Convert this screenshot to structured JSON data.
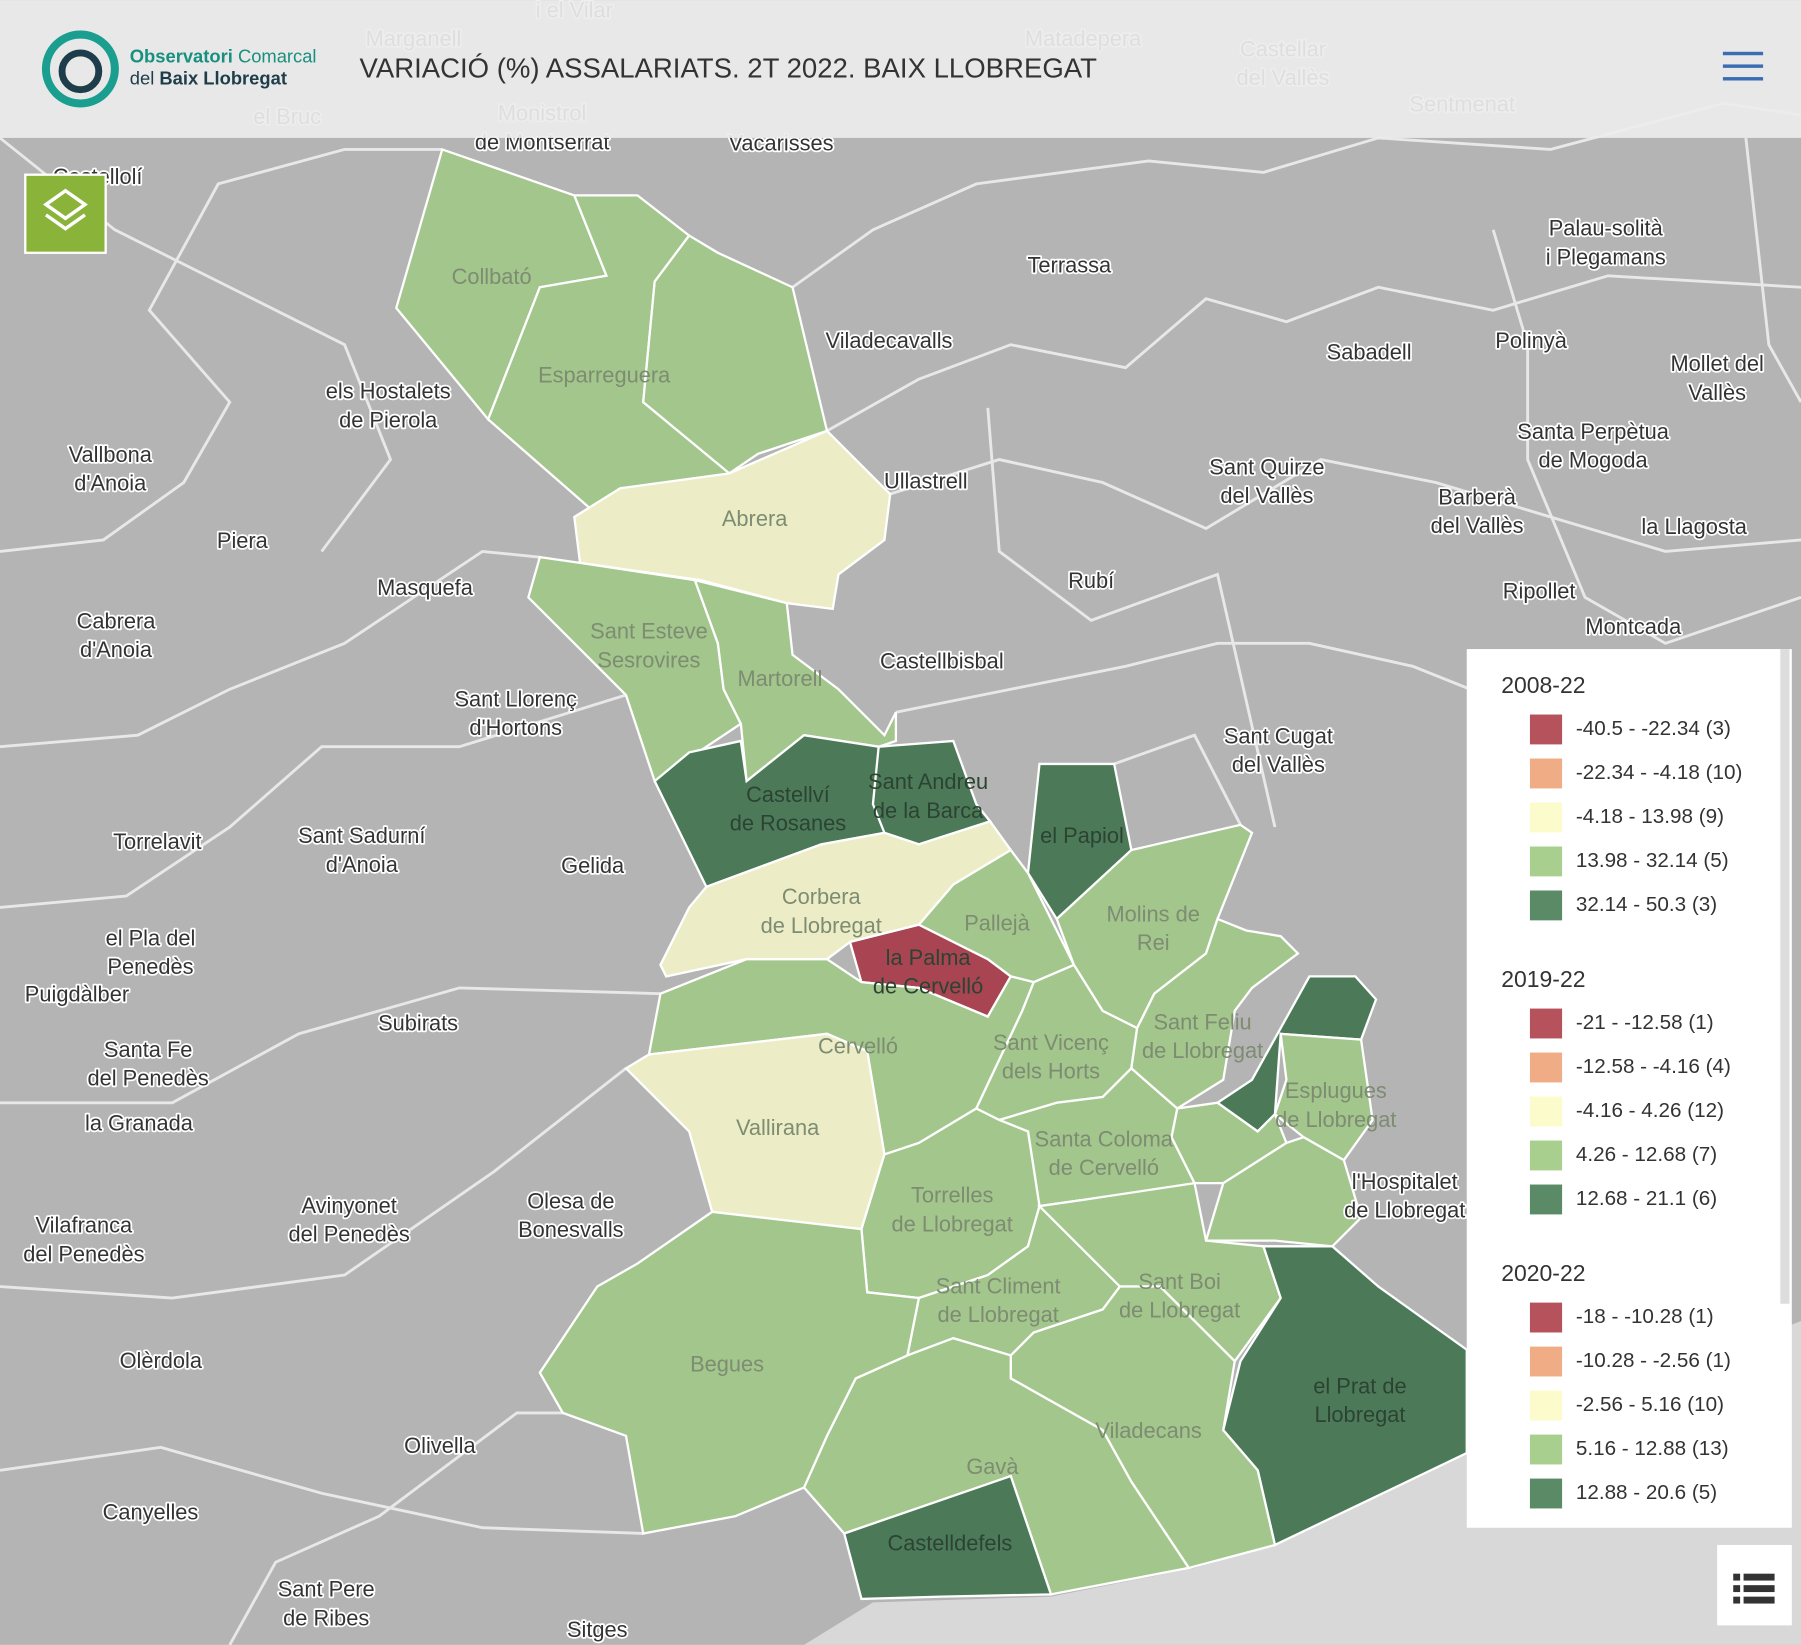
{
  "header": {
    "logo_line1_bold": "Observatori",
    "logo_line1": "Comarcal",
    "logo_line2": "del",
    "logo_line2_bold": "Baix Llobregat",
    "title": "VARIACIÓ (%) ASSALARIATS. 2T 2022. BAIX LLOBREGAT"
  },
  "base_labels": [
    {
      "lines": [
        "Marganell"
      ]
    },
    {
      "lines": [
        "i el Vilar"
      ]
    },
    {
      "lines": [
        "Matadepera"
      ]
    },
    {
      "lines": [
        "Castellar",
        "del Vallès"
      ]
    },
    {
      "lines": [
        "Sentmenat"
      ]
    },
    {
      "lines": [
        "el Bruc"
      ]
    },
    {
      "lines": [
        "Monistrol",
        "de Montserrat"
      ]
    },
    {
      "lines": [
        "Vacarisses"
      ]
    },
    {
      "lines": [
        "Terrassa"
      ]
    },
    {
      "lines": [
        "Palau-solità",
        "i Plegamans"
      ]
    },
    {
      "lines": [
        "els Hostalets",
        "de Pierola"
      ]
    },
    {
      "lines": [
        "Viladecavalls"
      ]
    },
    {
      "lines": [
        "Sabadell"
      ]
    },
    {
      "lines": [
        "Polinyà"
      ]
    },
    {
      "lines": [
        "Mollet del",
        "Vallès"
      ]
    },
    {
      "lines": [
        "Vallbona",
        "d'Anoia"
      ]
    },
    {
      "lines": [
        "Santa Perpètua",
        "de Mogoda"
      ]
    },
    {
      "lines": [
        "Sant Quirze",
        "del Vallès"
      ]
    },
    {
      "lines": [
        "Ullastrell"
      ]
    },
    {
      "lines": [
        "Barberà",
        "del Vallès"
      ]
    },
    {
      "lines": [
        "la Llagosta"
      ]
    },
    {
      "lines": [
        "Piera"
      ]
    },
    {
      "lines": [
        "Rubí"
      ]
    },
    {
      "lines": [
        "Masquefa"
      ]
    },
    {
      "lines": [
        "Ripollet"
      ]
    },
    {
      "lines": [
        "Cabrera",
        "d'Anoia"
      ]
    },
    {
      "lines": [
        "Montcada"
      ]
    },
    {
      "lines": [
        "Castellbisbal"
      ]
    },
    {
      "lines": [
        "Sant Llorenç",
        "d'Hortons"
      ]
    },
    {
      "lines": [
        "Sant Cugat",
        "del Vallès"
      ]
    },
    {
      "lines": [
        "Torrelavit"
      ]
    },
    {
      "lines": [
        "Sant Sadurní",
        "d'Anoia"
      ]
    },
    {
      "lines": [
        "Gelida"
      ]
    },
    {
      "lines": [
        "el Pla del",
        "Penedès"
      ]
    },
    {
      "lines": [
        "Puigdàlber"
      ]
    },
    {
      "lines": [
        "Subirats"
      ]
    },
    {
      "lines": [
        "Santa Fe",
        "del Penedès"
      ]
    },
    {
      "lines": [
        "la Granada"
      ]
    },
    {
      "lines": [
        "Vilafranca",
        "del Penedès"
      ]
    },
    {
      "lines": [
        "Avinyonet",
        "del Penedès"
      ]
    },
    {
      "lines": [
        "Olesa de",
        "Bonesvalls"
      ]
    },
    {
      "lines": [
        "Olèrdola"
      ]
    },
    {
      "lines": [
        "Olivella"
      ]
    },
    {
      "lines": [
        "Canyelles"
      ]
    },
    {
      "lines": [
        "Sant Pere",
        "de Ribes"
      ]
    },
    {
      "lines": [
        "Sitges"
      ]
    },
    {
      "lines": [
        "l'Hospitalet",
        "de Llobregat"
      ]
    },
    {
      "lines": [
        "Castellolí"
      ]
    }
  ],
  "municipalities": [
    {
      "lines": [
        "Collbató"
      ],
      "color": "#a3c68c"
    },
    {
      "lines": [
        "Esparreguera"
      ],
      "color": "#a3c68c"
    },
    {
      "color": "#a3c68c"
    },
    {
      "lines": [
        "Abrera"
      ],
      "color": "#ecedc6"
    },
    {
      "lines": [
        "Sant Esteve",
        "Sesrovires"
      ],
      "color": "#a3c68c"
    },
    {
      "lines": [
        "Martorell"
      ],
      "color": "#a3c68c"
    },
    {
      "lines": [
        "Castellví",
        "de Rosanes"
      ],
      "color": "#4c7a59"
    },
    {
      "lines": [
        "Sant Andreu",
        "de la Barca"
      ],
      "color": "#4c7a59"
    },
    {
      "lines": [
        "Corbera",
        "de Llobregat"
      ],
      "color": "#ecedc6"
    },
    {
      "lines": [
        "Pallejà"
      ],
      "color": "#a3c68c"
    },
    {
      "lines": [
        "el Papiol"
      ],
      "color": "#4c7a59"
    },
    {
      "lines": [
        "Molins de",
        "Rei"
      ],
      "color": "#a3c68c"
    },
    {
      "lines": [
        "la Palma",
        "de Cervelló"
      ],
      "color": "#a94452"
    },
    {
      "lines": [
        "Cervelló"
      ],
      "color": "#a3c68c"
    },
    {
      "lines": [
        "Vallirana"
      ],
      "color": "#ecedc6"
    },
    {
      "lines": [
        "Sant Vicenç",
        "dels Horts"
      ],
      "color": "#a3c68c"
    },
    {
      "lines": [
        "Santa Coloma",
        "de Cervelló"
      ],
      "color": "#a3c68c"
    },
    {
      "lines": [
        "Sant Feliu",
        "de Llobregat"
      ],
      "color": "#a3c68c"
    },
    {
      "color": "#4c7a59"
    },
    {
      "lines": [
        "Esplugues",
        "de Llobregat"
      ],
      "color": "#a3c68c"
    },
    {
      "color": "#a3c68c"
    },
    {
      "color": "#a3c68c"
    },
    {
      "lines": [
        "Torrelles",
        "de Llobregat"
      ],
      "color": "#a3c68c"
    },
    {
      "lines": [
        "Sant Climent",
        "de Llobregat"
      ],
      "color": "#a3c68c"
    },
    {
      "lines": [
        "Sant Boi",
        "de Llobregat"
      ],
      "color": "#a3c68c"
    },
    {
      "lines": [
        "el Prat de",
        "Llobregat"
      ],
      "color": "#4c7a59"
    },
    {
      "lines": [
        "Viladecans"
      ],
      "color": "#a3c68c"
    },
    {
      "lines": [
        "Gavà"
      ],
      "color": "#a3c68c"
    },
    {
      "lines": [
        "Castelldefels"
      ],
      "color": "#4c7a59"
    },
    {
      "lines": [
        "Begues"
      ],
      "color": "#a3c68c"
    }
  ],
  "legend": [
    {
      "title": "2008-22",
      "items": [
        {
          "label": "-40.5 - -22.34 (3)",
          "color": "#b5525c"
        },
        {
          "label": "-22.34 - -4.18 (10)",
          "color": "#f0ac84"
        },
        {
          "label": "-4.18 - 13.98 (9)",
          "color": "#fbfbcb"
        },
        {
          "label": "13.98 - 32.14 (5)",
          "color": "#a8cf8e"
        },
        {
          "label": "32.14 - 50.3 (3)",
          "color": "#5a8a66"
        }
      ]
    },
    {
      "title": "2019-22",
      "items": [
        {
          "label": "-21 - -12.58 (1)",
          "color": "#b5525c"
        },
        {
          "label": "-12.58 - -4.16 (4)",
          "color": "#f0ac84"
        },
        {
          "label": "-4.16 - 4.26 (12)",
          "color": "#fbfbcb"
        },
        {
          "label": "4.26 - 12.68 (7)",
          "color": "#a8cf8e"
        },
        {
          "label": "12.68 - 21.1 (6)",
          "color": "#5a8a66"
        }
      ]
    },
    {
      "title": "2020-22",
      "items": [
        {
          "label": "-18 - -10.28 (1)",
          "color": "#b5525c"
        },
        {
          "label": "-10.28 - -2.56 (1)",
          "color": "#f0ac84"
        },
        {
          "label": "-2.56 - 5.16 (10)",
          "color": "#fbfbcb"
        },
        {
          "label": "5.16 - 12.88 (13)",
          "color": "#a8cf8e"
        },
        {
          "label": "12.88 - 20.6 (5)",
          "color": "#5a8a66"
        }
      ]
    }
  ]
}
